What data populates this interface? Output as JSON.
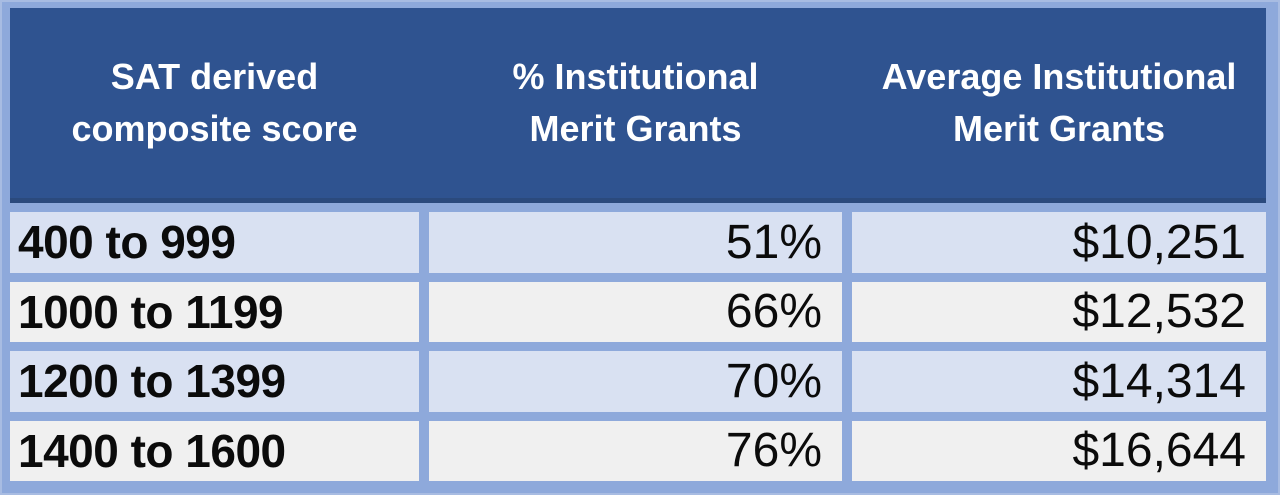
{
  "colors": {
    "frame_border": "#8EA9DB",
    "frame_outer_edge": "#A8BCE2",
    "header_bg": "#2F5390",
    "header_underline": "#2B4A7D",
    "header_text": "#FFFFFF",
    "row_blue": "#D9E1F2",
    "row_gray": "#F0F0F0",
    "cell_text": "#0B0B0B"
  },
  "table": {
    "headers": [
      {
        "line1": "SAT derived",
        "line2": "composite score"
      },
      {
        "line1": "% Institutional",
        "line2": "Merit Grants"
      },
      {
        "line1": "Average Institutional",
        "line2": "Merit Grants"
      }
    ],
    "rows": [
      {
        "cells": [
          "400 to 999",
          "51%",
          "$10,251"
        ]
      },
      {
        "cells": [
          "1000 to 1199",
          "66%",
          "$12,532"
        ]
      },
      {
        "cells": [
          "1200 to 1399",
          "70%",
          "$14,314"
        ]
      },
      {
        "cells": [
          "1400 to 1600",
          "76%",
          "$16,644"
        ]
      }
    ]
  },
  "chart_data": {
    "type": "table",
    "title": "",
    "columns": [
      "SAT derived composite score",
      "% Institutional Merit Grants",
      "Average Institutional Merit Grants"
    ],
    "categories": [
      "400 to 999",
      "1000 to 1199",
      "1200 to 1399",
      "1400 to 1600"
    ],
    "series": [
      {
        "name": "% Institutional Merit Grants",
        "unit": "%",
        "values": [
          51,
          66,
          70,
          76
        ]
      },
      {
        "name": "Average Institutional Merit Grants",
        "unit": "USD",
        "values": [
          10251,
          12532,
          14314,
          16644
        ]
      }
    ],
    "rows": [
      [
        "400 to 999",
        "51%",
        "$10,251"
      ],
      [
        "1000 to 1199",
        "66%",
        "$12,532"
      ],
      [
        "1200 to 1399",
        "70%",
        "$14,314"
      ],
      [
        "1400 to 1600",
        "76%",
        "$16,644"
      ]
    ]
  }
}
